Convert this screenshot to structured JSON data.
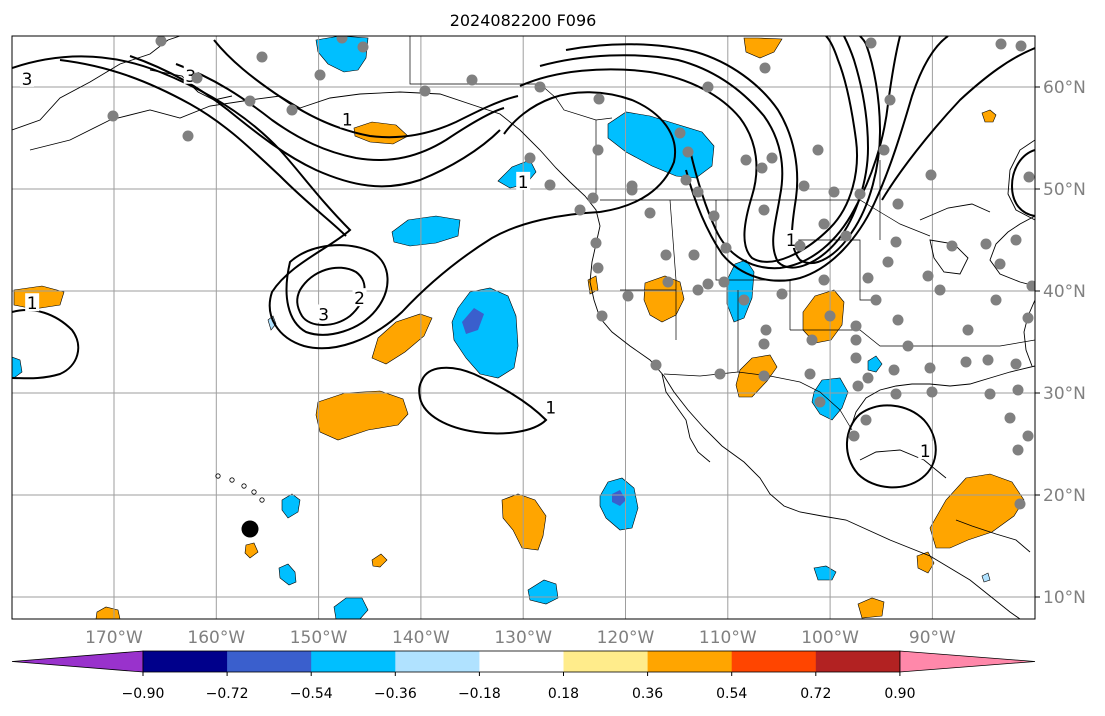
{
  "title": "2024082200 F096",
  "map": {
    "lon_ticks": [
      {
        "lon": -170,
        "label": "170°W"
      },
      {
        "lon": -160,
        "label": "160°W"
      },
      {
        "lon": -150,
        "label": "150°W"
      },
      {
        "lon": -140,
        "label": "140°W"
      },
      {
        "lon": -130,
        "label": "130°W"
      },
      {
        "lon": -120,
        "label": "120°W"
      },
      {
        "lon": -110,
        "label": "110°W"
      },
      {
        "lon": -100,
        "label": "100°W"
      },
      {
        "lon": -90,
        "label": "90°W"
      }
    ],
    "lat_ticks": [
      {
        "lat": 60,
        "label": "60°N"
      },
      {
        "lat": 50,
        "label": "50°N"
      },
      {
        "lat": 40,
        "label": "40°N"
      },
      {
        "lat": 30,
        "label": "30°N"
      },
      {
        "lat": 20,
        "label": "20°N"
      },
      {
        "lat": 10,
        "label": "10°N"
      }
    ],
    "contour_labels": [
      {
        "text": "3",
        "lon": -178.5,
        "lat": 60.8
      },
      {
        "text": "3",
        "lon": -162.5,
        "lat": 61.1
      },
      {
        "text": "1",
        "lon": -147.2,
        "lat": 56.8
      },
      {
        "text": "1",
        "lon": -178.0,
        "lat": 38.8
      },
      {
        "text": "3",
        "lon": -149.5,
        "lat": 37.7
      },
      {
        "text": "2",
        "lon": -146.0,
        "lat": 39.3
      },
      {
        "text": "1",
        "lon": -127.3,
        "lat": 28.6
      },
      {
        "text": "1",
        "lon": -130.0,
        "lat": 50.7
      },
      {
        "text": "1",
        "lon": -103.8,
        "lat": 45.0
      },
      {
        "text": "1",
        "lon": -90.7,
        "lat": 24.3
      }
    ],
    "marker_color": "#808080"
  },
  "colorbar": {
    "tick_labels": [
      "−0.90",
      "−0.72",
      "−0.54",
      "−0.36",
      "−0.18",
      "0.18",
      "0.36",
      "0.54",
      "0.72",
      "0.90"
    ],
    "colors": [
      "#9932cc",
      "#00008b",
      "#3a5fcd",
      "#00bfff",
      "#b0e2ff",
      "#ffffff",
      "#ffec8b",
      "#ffa500",
      "#ff4500",
      "#b22222",
      "#ff88aa"
    ]
  }
}
